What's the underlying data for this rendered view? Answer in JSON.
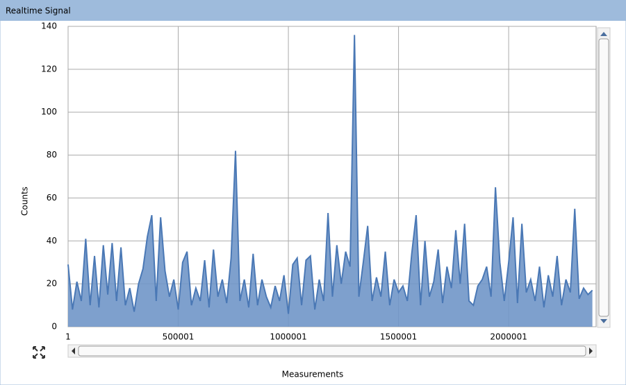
{
  "panel": {
    "title": "Realtime Signal"
  },
  "chart_data": {
    "type": "area",
    "y_label": "Counts",
    "x_label": "Measurements",
    "ylim": [
      0,
      140
    ],
    "yticks": [
      0,
      20,
      40,
      60,
      80,
      100,
      120,
      140
    ],
    "xlim": [
      1,
      2397000
    ],
    "xticks": [
      1,
      500001,
      1000001,
      1500001,
      2000001
    ],
    "grid": true,
    "x": [
      1,
      20001,
      40001,
      60001,
      80001,
      100001,
      120001,
      140001,
      160001,
      180001,
      200001,
      220001,
      240001,
      260001,
      280001,
      300001,
      320001,
      340001,
      360001,
      380001,
      400001,
      420001,
      440001,
      460001,
      480001,
      500001,
      520001,
      540001,
      560001,
      580001,
      600001,
      620001,
      640001,
      660001,
      680001,
      700001,
      720001,
      740001,
      760001,
      780001,
      800001,
      820001,
      840001,
      860001,
      880001,
      900001,
      920001,
      940001,
      960001,
      980001,
      1000001,
      1020001,
      1040001,
      1060001,
      1080001,
      1100001,
      1120001,
      1140001,
      1160001,
      1180001,
      1200001,
      1220001,
      1240001,
      1260001,
      1280001,
      1300001,
      1320001,
      1340001,
      1360001,
      1380001,
      1400001,
      1420001,
      1440001,
      1460001,
      1480001,
      1500001,
      1520001,
      1540001,
      1560001,
      1580001,
      1600001,
      1620001,
      1640001,
      1660001,
      1680001,
      1700001,
      1720001,
      1740001,
      1760001,
      1780001,
      1800001,
      1820001,
      1840001,
      1860001,
      1880001,
      1900001,
      1920001,
      1940001,
      1960001,
      1980001,
      2000001,
      2020001,
      2040001,
      2060001,
      2080001,
      2100001,
      2120001,
      2140001,
      2160001,
      2180001,
      2200001,
      2220001,
      2240001,
      2260001,
      2280001,
      2300001,
      2320001,
      2340001,
      2360001,
      2380001
    ],
    "series": [
      {
        "name": "Counts",
        "color": "#4a78b5",
        "fill": "#7096c8",
        "values": [
          29,
          8,
          21,
          12,
          41,
          10,
          33,
          9,
          38,
          15,
          39,
          12,
          37,
          10,
          18,
          7,
          20,
          27,
          42,
          52,
          12,
          51,
          26,
          14,
          22,
          8,
          30,
          35,
          10,
          18,
          12,
          31,
          9,
          36,
          14,
          22,
          11,
          32,
          82,
          12,
          22,
          9,
          34,
          10,
          22,
          14,
          9,
          19,
          12,
          24,
          6,
          29,
          32,
          10,
          31,
          33,
          8,
          22,
          12,
          53,
          14,
          38,
          20,
          35,
          28,
          136,
          14,
          30,
          47,
          12,
          23,
          14,
          35,
          10,
          22,
          16,
          19,
          12,
          34,
          52,
          10,
          40,
          14,
          21,
          36,
          11,
          28,
          18,
          45,
          20,
          48,
          12,
          10,
          19,
          22,
          28,
          14,
          65,
          30,
          12,
          30,
          51,
          11,
          48,
          16,
          22,
          12,
          28,
          9,
          24,
          14,
          33,
          10,
          22,
          16,
          55,
          13,
          18,
          15,
          17
        ]
      }
    ]
  }
}
